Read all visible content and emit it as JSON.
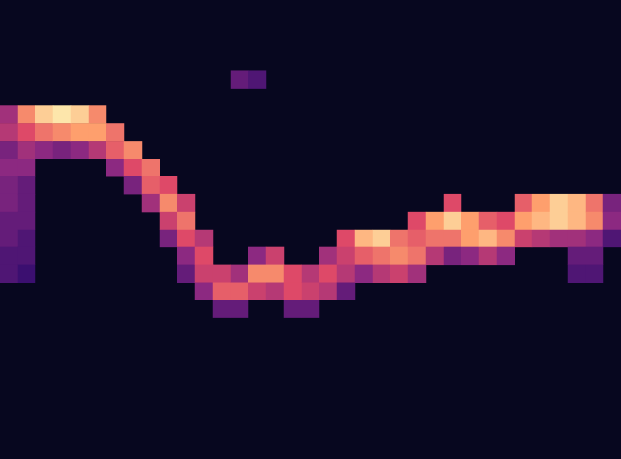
{
  "chart_data": {
    "type": "heatmap",
    "tick_labels": false,
    "grid": false,
    "xlim": [
      0,
      35
    ],
    "ylim": [
      0,
      26
    ],
    "zlim": [
      0,
      100
    ],
    "cells": [
      [
        0,
        6,
        45
      ],
      [
        0,
        7,
        50
      ],
      [
        0,
        8,
        35
      ],
      [
        0,
        9,
        40
      ],
      [
        0,
        10,
        35
      ],
      [
        0,
        11,
        35
      ],
      [
        0,
        12,
        30
      ],
      [
        0,
        13,
        30
      ],
      [
        0,
        14,
        25
      ],
      [
        0,
        15,
        25
      ],
      [
        1,
        6,
        75
      ],
      [
        1,
        7,
        60
      ],
      [
        1,
        8,
        45
      ],
      [
        1,
        9,
        40
      ],
      [
        1,
        10,
        30
      ],
      [
        1,
        11,
        30
      ],
      [
        1,
        12,
        30
      ],
      [
        1,
        13,
        25
      ],
      [
        1,
        14,
        25
      ],
      [
        1,
        15,
        20
      ],
      [
        2,
        6,
        90
      ],
      [
        2,
        7,
        70
      ],
      [
        2,
        8,
        40
      ],
      [
        3,
        6,
        95
      ],
      [
        3,
        7,
        75
      ],
      [
        3,
        8,
        35
      ],
      [
        4,
        6,
        90
      ],
      [
        4,
        7,
        80
      ],
      [
        4,
        8,
        40
      ],
      [
        5,
        6,
        75
      ],
      [
        5,
        7,
        80
      ],
      [
        5,
        8,
        50
      ],
      [
        6,
        7,
        70
      ],
      [
        6,
        8,
        65
      ],
      [
        6,
        9,
        40
      ],
      [
        7,
        8,
        75
      ],
      [
        7,
        9,
        60
      ],
      [
        7,
        10,
        35
      ],
      [
        8,
        9,
        70
      ],
      [
        8,
        10,
        65
      ],
      [
        8,
        11,
        45
      ],
      [
        9,
        10,
        60
      ],
      [
        9,
        11,
        75
      ],
      [
        9,
        12,
        55
      ],
      [
        9,
        13,
        35
      ],
      [
        10,
        11,
        55
      ],
      [
        10,
        12,
        70
      ],
      [
        10,
        13,
        60
      ],
      [
        10,
        14,
        40
      ],
      [
        10,
        15,
        30
      ],
      [
        11,
        13,
        50
      ],
      [
        11,
        14,
        60
      ],
      [
        11,
        15,
        55
      ],
      [
        11,
        16,
        40
      ],
      [
        12,
        15,
        55
      ],
      [
        12,
        16,
        65
      ],
      [
        12,
        17,
        30
      ],
      [
        13,
        4,
        30
      ],
      [
        13,
        15,
        45
      ],
      [
        13,
        16,
        65
      ],
      [
        13,
        17,
        30
      ],
      [
        14,
        4,
        25
      ],
      [
        14,
        14,
        40
      ],
      [
        14,
        15,
        75
      ],
      [
        14,
        16,
        55
      ],
      [
        15,
        14,
        55
      ],
      [
        15,
        15,
        75
      ],
      [
        15,
        16,
        50
      ],
      [
        16,
        15,
        60
      ],
      [
        16,
        16,
        60
      ],
      [
        16,
        17,
        30
      ],
      [
        17,
        15,
        50
      ],
      [
        17,
        16,
        55
      ],
      [
        17,
        17,
        30
      ],
      [
        18,
        14,
        45
      ],
      [
        18,
        15,
        60
      ],
      [
        18,
        16,
        50
      ],
      [
        19,
        13,
        60
      ],
      [
        19,
        14,
        55
      ],
      [
        19,
        15,
        50
      ],
      [
        19,
        16,
        30
      ],
      [
        20,
        13,
        85
      ],
      [
        20,
        14,
        65
      ],
      [
        20,
        15,
        40
      ],
      [
        21,
        13,
        90
      ],
      [
        21,
        14,
        70
      ],
      [
        21,
        15,
        50
      ],
      [
        22,
        13,
        70
      ],
      [
        22,
        14,
        75
      ],
      [
        22,
        15,
        55
      ],
      [
        23,
        12,
        60
      ],
      [
        23,
        13,
        65
      ],
      [
        23,
        14,
        70
      ],
      [
        23,
        15,
        45
      ],
      [
        24,
        12,
        80
      ],
      [
        24,
        13,
        70
      ],
      [
        24,
        14,
        50
      ],
      [
        25,
        11,
        60
      ],
      [
        25,
        12,
        90
      ],
      [
        25,
        13,
        70
      ],
      [
        25,
        14,
        35
      ],
      [
        26,
        12,
        80
      ],
      [
        26,
        13,
        80
      ],
      [
        26,
        14,
        40
      ],
      [
        27,
        12,
        65
      ],
      [
        27,
        13,
        85
      ],
      [
        27,
        14,
        50
      ],
      [
        28,
        12,
        60
      ],
      [
        28,
        13,
        75
      ],
      [
        28,
        14,
        40
      ],
      [
        29,
        11,
        65
      ],
      [
        29,
        12,
        80
      ],
      [
        29,
        13,
        55
      ],
      [
        30,
        11,
        80
      ],
      [
        30,
        12,
        85
      ],
      [
        30,
        13,
        50
      ],
      [
        31,
        11,
        90
      ],
      [
        31,
        12,
        90
      ],
      [
        31,
        13,
        45
      ],
      [
        32,
        11,
        85
      ],
      [
        32,
        12,
        85
      ],
      [
        32,
        13,
        45
      ],
      [
        32,
        14,
        30
      ],
      [
        32,
        15,
        25
      ],
      [
        33,
        11,
        70
      ],
      [
        33,
        12,
        75
      ],
      [
        33,
        13,
        40
      ],
      [
        33,
        14,
        30
      ],
      [
        33,
        15,
        25
      ],
      [
        34,
        11,
        35
      ],
      [
        34,
        12,
        40
      ],
      [
        34,
        13,
        25
      ]
    ]
  }
}
